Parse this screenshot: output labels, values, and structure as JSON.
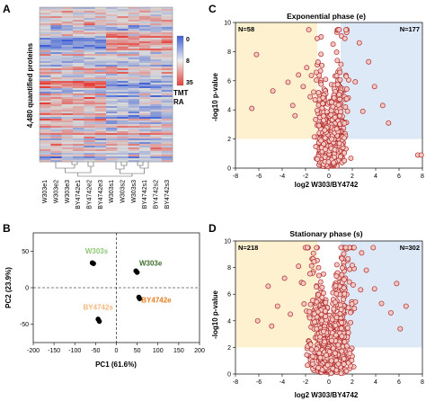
{
  "panels": {
    "a": {
      "label": "A",
      "ylabel": "4,480 quantified proteins",
      "samples": [
        "W303e1",
        "W303e2",
        "W303e3",
        "BY4742e1",
        "BY4742e2",
        "BY4742e3",
        "W303s1",
        "W303s2",
        "W303s3",
        "BY4742s1",
        "BY4742s2",
        "BY4742s3"
      ],
      "scale": {
        "ticks": [
          "0",
          "8",
          "35"
        ],
        "unit1": "TMT",
        "unit2": "RA"
      },
      "colors": {
        "low": "#3d5fd6",
        "mid": "#d9d9d9",
        "high": "#e6403a"
      }
    },
    "b": {
      "label": "B"
    },
    "c": {
      "label": "C"
    },
    "d": {
      "label": "D"
    }
  },
  "chart_data": [
    {
      "type": "scatter",
      "title": "",
      "xlabel": "PC1 (61.6%)",
      "ylabel": "PC2 (23.9%)",
      "xlim": [
        -200,
        200
      ],
      "ylim": [
        -75,
        75
      ],
      "xticks": [
        -200,
        -150,
        -100,
        -50,
        0,
        50,
        100,
        150,
        200
      ],
      "yticks": [
        -50,
        0,
        50
      ],
      "grid": false,
      "points": [
        {
          "x": -58,
          "y": 34
        },
        {
          "x": -55,
          "y": 33
        },
        {
          "x": 47,
          "y": 23
        },
        {
          "x": 50,
          "y": 21
        },
        {
          "x": -44,
          "y": -43
        },
        {
          "x": -41,
          "y": -46
        },
        {
          "x": 54,
          "y": -13
        },
        {
          "x": 56,
          "y": -15
        }
      ],
      "groups": [
        {
          "name": "W303s",
          "color": "#90c978",
          "x": -75,
          "y": 47
        },
        {
          "name": "W303e",
          "color": "#3f6e2f",
          "x": 55,
          "y": 30
        },
        {
          "name": "BY4742s",
          "color": "#f2b77a",
          "x": -80,
          "y": -30
        },
        {
          "name": "BY4742e",
          "color": "#e47b1f",
          "x": 60,
          "y": -20
        }
      ]
    },
    {
      "type": "scatter",
      "title": "Exponential phase (e)",
      "xlabel": "log2 W303/BY4742",
      "ylabel": "-log10 p-value",
      "xlim": [
        -8,
        8
      ],
      "ylim": [
        0,
        10
      ],
      "xticks": [
        -8,
        -6,
        -4,
        -2,
        0,
        2,
        4,
        6,
        8
      ],
      "yticks": [
        0,
        2,
        4,
        6,
        8,
        10
      ],
      "counts": {
        "left": "N=58",
        "right": "N=177"
      },
      "regions": {
        "left_x": [
          -8,
          -1
        ],
        "right_x": [
          1,
          8
        ],
        "y_from": 2,
        "left_color": "#fdf1cf",
        "right_color": "#dde9f6"
      },
      "marker_color": "#b02a2a",
      "outliers": [
        {
          "x": -6.2,
          "y": 7.8
        },
        {
          "x": -6.6,
          "y": 4.1
        },
        {
          "x": -4.8,
          "y": 5.3
        },
        {
          "x": -3.5,
          "y": 5.9
        },
        {
          "x": -3.1,
          "y": 4.3
        },
        {
          "x": -2.6,
          "y": 6.4
        },
        {
          "x": -2.2,
          "y": 5.6
        },
        {
          "x": -2.9,
          "y": 3.6
        },
        {
          "x": -1.9,
          "y": 6.9
        },
        {
          "x": -1.6,
          "y": 4.9
        },
        {
          "x": 2.6,
          "y": 8.6
        },
        {
          "x": 3.4,
          "y": 7.3
        },
        {
          "x": 3.9,
          "y": 5.6
        },
        {
          "x": 4.6,
          "y": 4.3
        },
        {
          "x": 5.1,
          "y": 3.1
        },
        {
          "x": 2.9,
          "y": 3.9
        },
        {
          "x": 7.6,
          "y": 0.9
        },
        {
          "x": 7.9,
          "y": 0.9
        }
      ]
    },
    {
      "type": "scatter",
      "title": "Stationary phase (s)",
      "xlabel": "log2 W303/BY4742",
      "ylabel": "-log10 p-value",
      "xlim": [
        -8,
        8
      ],
      "ylim": [
        0,
        10
      ],
      "xticks": [
        -8,
        -6,
        -4,
        -2,
        0,
        2,
        4,
        6,
        8
      ],
      "yticks": [
        0,
        2,
        4,
        6,
        8,
        10
      ],
      "counts": {
        "left": "N=218",
        "right": "N=302"
      },
      "regions": {
        "left_x": [
          -8,
          -1
        ],
        "right_x": [
          1,
          8
        ],
        "y_from": 2,
        "left_color": "#fdf1cf",
        "right_color": "#dde9f6"
      },
      "marker_color": "#b02a2a",
      "outliers": [
        {
          "x": -5.2,
          "y": 6.6
        },
        {
          "x": -4.4,
          "y": 5.1
        },
        {
          "x": -3.8,
          "y": 7.2
        },
        {
          "x": -3.3,
          "y": 4.5
        },
        {
          "x": -4.9,
          "y": 3.6
        },
        {
          "x": -2.6,
          "y": 8.1
        },
        {
          "x": -6.1,
          "y": 4.0
        },
        {
          "x": 3.2,
          "y": 7.8
        },
        {
          "x": 3.9,
          "y": 6.4
        },
        {
          "x": 4.5,
          "y": 5.3
        },
        {
          "x": 5.3,
          "y": 4.6
        },
        {
          "x": 6.1,
          "y": 3.4
        },
        {
          "x": 6.6,
          "y": 5.1
        },
        {
          "x": 2.8,
          "y": 9.1
        },
        {
          "x": 5.8,
          "y": 6.8
        }
      ]
    }
  ]
}
